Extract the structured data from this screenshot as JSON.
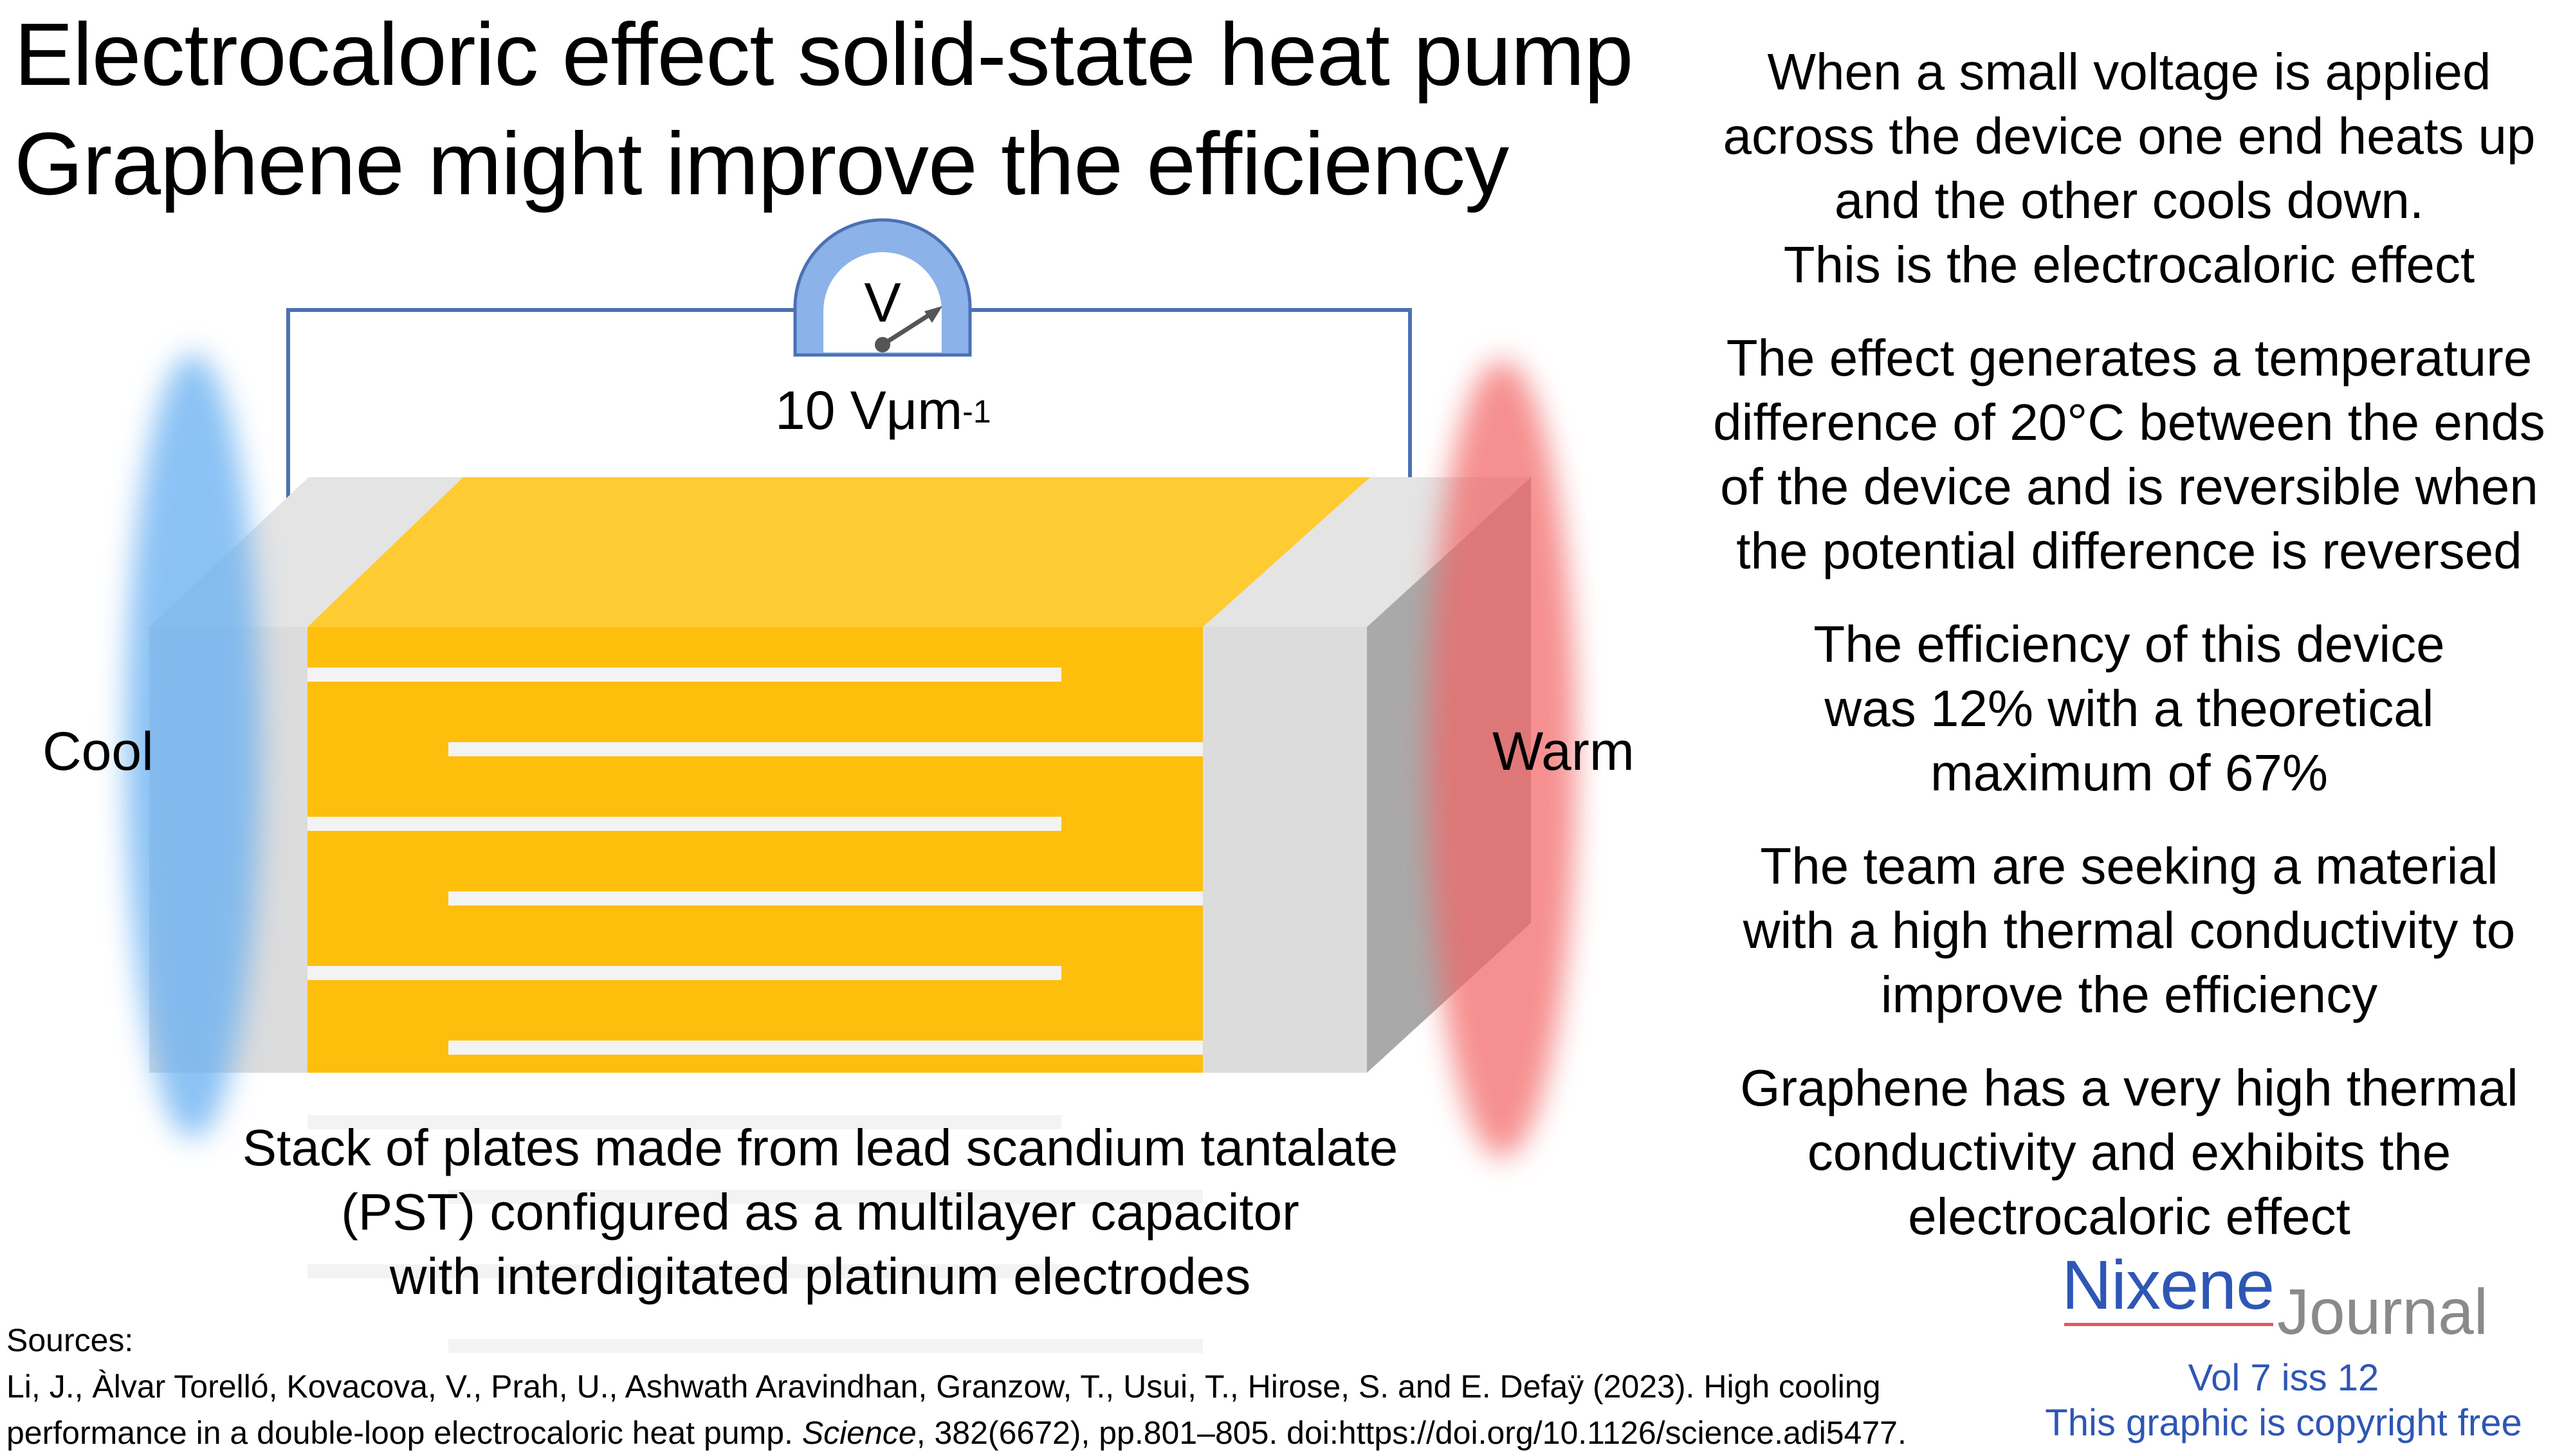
{
  "title_line1": "Electrocaloric effect solid-state heat pump",
  "title_line2": "Graphene might improve the efficiency",
  "diagram": {
    "meter_symbol": "V",
    "field_value": "10 Vμm",
    "field_exponent": "-1",
    "cool_label": "Cool",
    "warm_label": "Warm",
    "plates_per_side": 5,
    "colors": {
      "cool_glow": "#6ab1f2",
      "warm_glow": "#f36565",
      "plate_yellow": "#fdbf0b",
      "plate_top": "#fecb32",
      "end_cap": "#dcdcdc",
      "wire": "#4b70b3",
      "meter_blue": "#8cb2ea"
    }
  },
  "caption": [
    "Stack of plates made from lead scandium tantalate",
    "(PST) configured as a multilayer capacitor",
    "with interdigitated platinum electrodes"
  ],
  "paragraphs": [
    [
      "When a small voltage is applied",
      "across the device one end heats up",
      "and the other cools down.",
      "This is the electrocaloric effect"
    ],
    [
      "The effect generates a temperature",
      "difference of 20°C between the ends",
      "of the device and is reversible when",
      "the potential difference is reversed"
    ],
    [
      "The efficiency of this device",
      "was 12% with a theoretical",
      "maximum of 67%"
    ],
    [
      "The team are seeking a material",
      "with a high thermal conductivity to",
      "improve the efficiency"
    ],
    [
      "Graphene has a very high thermal",
      "conductivity and exhibits the",
      "electrocaloric effect"
    ]
  ],
  "sources": {
    "heading": "Sources:",
    "line1": "Li, J., Àlvar Torelló, Kovacova, V., Prah, U., Ashwath Aravindhan, Granzow, T., Usui, T., Hirose, S. and E. Defaÿ (2023). High cooling",
    "line2_pre": "performance in a double-loop electrocaloric heat pump. ",
    "line2_journal": "Science",
    "line2_post": ", 382(6672), pp.801–805. doi:https://doi.org/10.1126/science.adi5477."
  },
  "brand": {
    "name_part1": "Nixene",
    "name_part2": "Journal",
    "volume": "Vol 7 iss 12",
    "copyright": "This graphic is copyright free"
  }
}
